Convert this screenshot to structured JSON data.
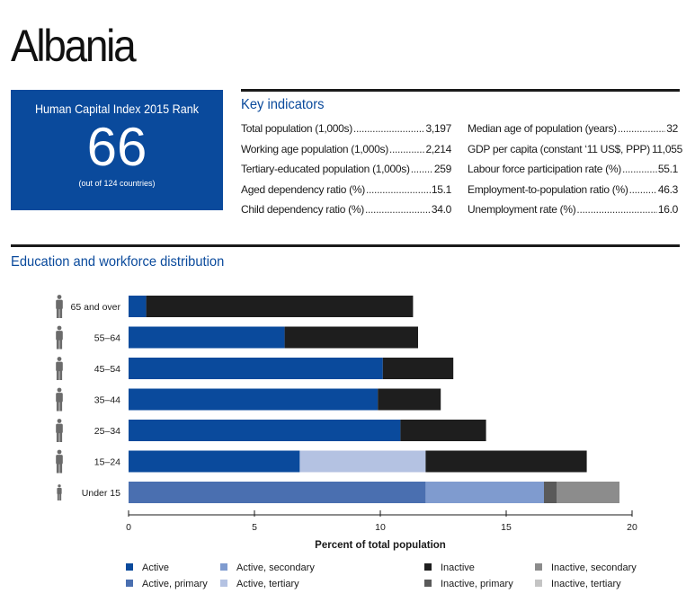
{
  "country": "Albania",
  "rank_box": {
    "title": "Human Capital Index 2015 Rank",
    "value": "66",
    "subtitle": "(out of 124 countries)"
  },
  "key_indicators": {
    "title": "Key indicators",
    "left": [
      {
        "label": "Total population (1,000s)",
        "value": "3,197"
      },
      {
        "label": "Working age population (1,000s)",
        "value": "2,214"
      },
      {
        "label": "Tertiary-educated population (1,000s)",
        "value": "259"
      },
      {
        "label": "Aged dependency ratio (%)",
        "value": "15.1"
      },
      {
        "label": "Child dependency ratio (%)",
        "value": "34.0"
      }
    ],
    "right": [
      {
        "label": "Median age of population (years)",
        "value": "32"
      },
      {
        "label": "GDP per capita (constant ‘11 US$, PPP)",
        "value": "11,055"
      },
      {
        "label": "Labour force participation rate (%)",
        "value": "55.1"
      },
      {
        "label": "Employment-to-population ratio (%)",
        "value": "46.3"
      },
      {
        "label": "Unemployment rate (%)",
        "value": "16.0"
      }
    ]
  },
  "section_title": "Education and workforce distribution",
  "colors": {
    "active": "#0a4a9c",
    "active_primary": "#4a6fb0",
    "active_secondary": "#7f9bcf",
    "active_tertiary": "#b4c2e2",
    "inactive": "#1e1e1e",
    "inactive_primary": "#5a5a5a",
    "inactive_secondary": "#8c8c8c",
    "inactive_tertiary": "#c4c4c4",
    "person_icon": "#6b6b6b"
  },
  "chart_data": {
    "type": "bar",
    "orientation": "horizontal",
    "stacked": true,
    "categories": [
      "65 and over",
      "55–64",
      "45–54",
      "35–44",
      "25–34",
      "15–24",
      "Under 15"
    ],
    "series": [
      {
        "name": "Active",
        "color_key": "active",
        "values": [
          0.7,
          6.2,
          10.1,
          9.9,
          10.8,
          6.8,
          0
        ]
      },
      {
        "name": "Active, primary",
        "color_key": "active_primary",
        "values": [
          0,
          0,
          0,
          0,
          0,
          0,
          11.8
        ]
      },
      {
        "name": "Active, secondary",
        "color_key": "active_secondary",
        "values": [
          0,
          0,
          0,
          0,
          0,
          0,
          4.7
        ]
      },
      {
        "name": "Active, tertiary",
        "color_key": "active_tertiary",
        "values": [
          0,
          0,
          0,
          0,
          0,
          5.0,
          0
        ]
      },
      {
        "name": "Inactive",
        "color_key": "inactive",
        "values": [
          10.6,
          5.3,
          2.8,
          2.5,
          3.4,
          6.4,
          0
        ]
      },
      {
        "name": "Inactive, primary",
        "color_key": "inactive_primary",
        "values": [
          0,
          0,
          0,
          0,
          0,
          0,
          0.5
        ]
      },
      {
        "name": "Inactive, secondary",
        "color_key": "inactive_secondary",
        "values": [
          0,
          0,
          0,
          0,
          0,
          0,
          2.5
        ]
      },
      {
        "name": "Inactive, tertiary",
        "color_key": "inactive_tertiary",
        "values": [
          0,
          0,
          0,
          0,
          0,
          0,
          0
        ]
      }
    ],
    "xlabel": "Percent of total population",
    "xlim": [
      0,
      20
    ],
    "xticks": [
      0,
      5,
      10,
      15,
      20
    ],
    "xtick_labels": [
      "0",
      "5",
      "10",
      "15",
      "20"
    ],
    "grid": false,
    "legend_placement": "bottom",
    "legend_order": [
      "Active",
      "Active, secondary",
      "Inactive",
      "Inactive, secondary",
      "Active, primary",
      "Active, tertiary",
      "Inactive, primary",
      "Inactive, tertiary"
    ]
  }
}
